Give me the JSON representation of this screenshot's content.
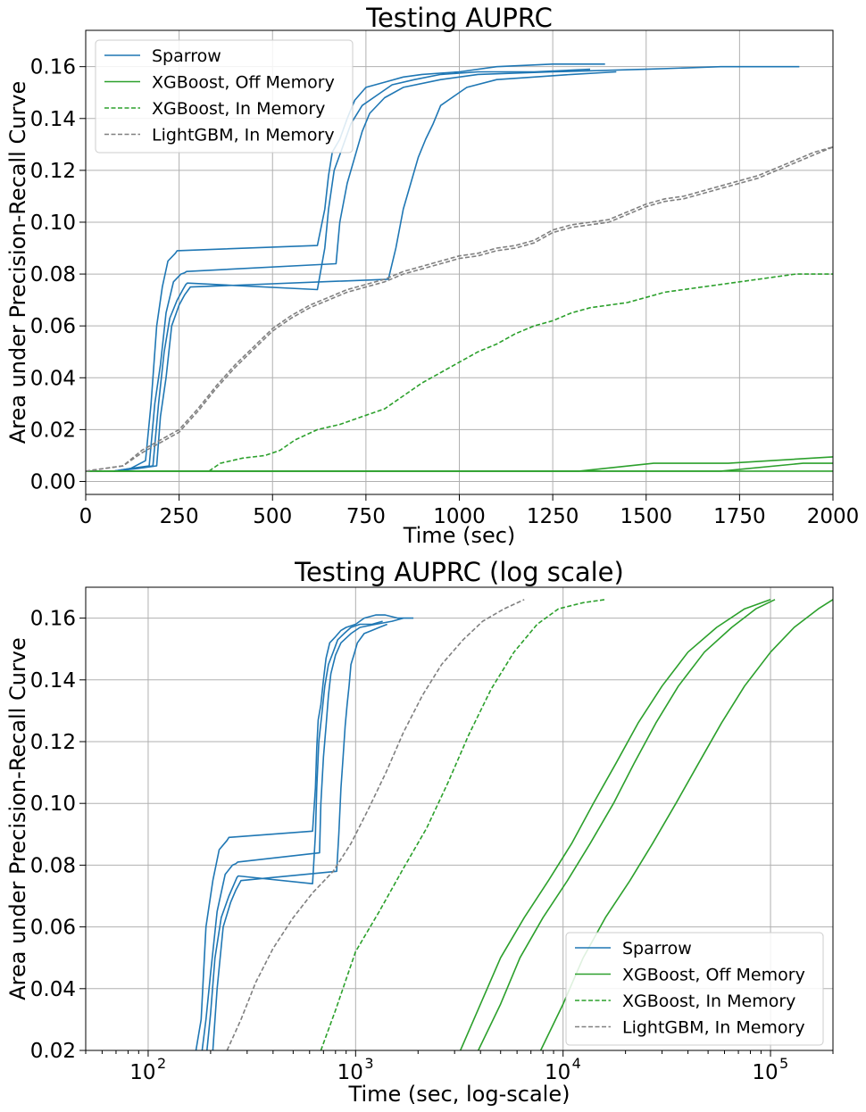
{
  "colors": {
    "sparrow": "#1f77b4",
    "xgboost": "#2ca02c",
    "lightgbm": "#808080"
  },
  "chart_data": [
    {
      "type": "line",
      "title": "Testing AUPRC",
      "xlabel": "Time (sec)",
      "ylabel": "Area under Precision-Recall Curve",
      "xscale": "linear",
      "xlim": [
        0,
        2000
      ],
      "ylim": [
        -0.005,
        0.174
      ],
      "xticks": [
        0,
        250,
        500,
        750,
        1000,
        1250,
        1500,
        1750,
        2000
      ],
      "xtick_labels": [
        "0",
        "250",
        "500",
        "750",
        "1000",
        "1250",
        "1500",
        "1750",
        "2000"
      ],
      "yticks": [
        0,
        0.02,
        0.04,
        0.06,
        0.08,
        0.1,
        0.12,
        0.14,
        0.16
      ],
      "ytick_labels": [
        "0.00",
        "0.02",
        "0.04",
        "0.06",
        "0.08",
        "0.10",
        "0.12",
        "0.14",
        "0.16"
      ],
      "grid": true,
      "legend_position": "upper-left",
      "series": [
        {
          "name": "Sparrow",
          "color": "sparrow",
          "dash": "solid",
          "legend": true,
          "x": [
            75,
            120,
            160,
            175,
            190,
            205,
            220,
            240,
            245,
            620,
            640,
            650,
            660,
            680,
            700,
            720,
            750,
            800,
            850,
            900,
            1000,
            1100,
            1250,
            1390
          ],
          "y": [
            0.004,
            0.005,
            0.008,
            0.03,
            0.06,
            0.075,
            0.085,
            0.088,
            0.089,
            0.091,
            0.105,
            0.118,
            0.127,
            0.132,
            0.14,
            0.147,
            0.152,
            0.154,
            0.156,
            0.157,
            0.158,
            0.16,
            0.161,
            0.161
          ]
        },
        {
          "name": "",
          "color": "sparrow",
          "dash": "solid",
          "legend": false,
          "x": [
            75,
            120,
            170,
            185,
            200,
            215,
            235,
            255,
            265,
            270,
            670,
            680,
            700,
            720,
            740,
            760,
            800,
            850,
            950,
            1050,
            1250,
            1500,
            1700,
            1910
          ],
          "y": [
            0.004,
            0.005,
            0.006,
            0.03,
            0.045,
            0.065,
            0.077,
            0.08,
            0.0805,
            0.081,
            0.084,
            0.1,
            0.115,
            0.125,
            0.135,
            0.142,
            0.148,
            0.152,
            0.155,
            0.157,
            0.158,
            0.159,
            0.16,
            0.16
          ]
        },
        {
          "name": "",
          "color": "sparrow",
          "dash": "solid",
          "legend": false,
          "x": [
            75,
            130,
            180,
            195,
            210,
            225,
            245,
            260,
            268,
            272,
            620,
            640,
            650,
            665,
            690,
            710,
            740,
            780,
            820,
            880,
            950,
            1050,
            1200,
            1350
          ],
          "y": [
            0.004,
            0.005,
            0.006,
            0.03,
            0.05,
            0.063,
            0.07,
            0.074,
            0.076,
            0.0765,
            0.074,
            0.09,
            0.105,
            0.12,
            0.13,
            0.138,
            0.145,
            0.149,
            0.153,
            0.155,
            0.157,
            0.158,
            0.158,
            0.159
          ]
        },
        {
          "name": "",
          "color": "sparrow",
          "dash": "solid",
          "legend": false,
          "x": [
            75,
            140,
            190,
            200,
            215,
            230,
            250,
            265,
            275,
            280,
            810,
            830,
            850,
            870,
            890,
            910,
            930,
            950,
            980,
            1020,
            1100,
            1200,
            1300,
            1420
          ],
          "y": [
            0.004,
            0.005,
            0.006,
            0.025,
            0.04,
            0.06,
            0.068,
            0.072,
            0.074,
            0.075,
            0.078,
            0.09,
            0.105,
            0.115,
            0.125,
            0.132,
            0.138,
            0.145,
            0.148,
            0.152,
            0.155,
            0.156,
            0.157,
            0.158
          ]
        },
        {
          "name": "XGBoost, Off Memory",
          "color": "xgboost",
          "dash": "solid",
          "legend": true,
          "x": [
            0,
            1320,
            1520,
            1720,
            2000
          ],
          "y": [
            0.004,
            0.004,
            0.007,
            0.007,
            0.0095
          ]
        },
        {
          "name": "",
          "color": "xgboost",
          "dash": "solid",
          "legend": false,
          "x": [
            0,
            1700,
            1920,
            2000
          ],
          "y": [
            0.004,
            0.004,
            0.007,
            0.007
          ]
        },
        {
          "name": "",
          "color": "xgboost",
          "dash": "solid",
          "legend": false,
          "x": [
            0,
            2000
          ],
          "y": [
            0.004,
            0.004
          ]
        },
        {
          "name": "XGBoost, In Memory",
          "color": "xgboost",
          "dash": "dashed",
          "legend": true,
          "x": [
            330,
            360,
            420,
            480,
            520,
            560,
            620,
            680,
            740,
            800,
            850,
            900,
            950,
            1000,
            1050,
            1100,
            1150,
            1200,
            1250,
            1300,
            1350,
            1400,
            1450,
            1500,
            1550,
            1600,
            1650,
            1700,
            1750,
            1800,
            1850,
            1900,
            1950,
            2000
          ],
          "y": [
            0.004,
            0.007,
            0.009,
            0.01,
            0.012,
            0.016,
            0.02,
            0.022,
            0.025,
            0.028,
            0.033,
            0.038,
            0.042,
            0.046,
            0.05,
            0.053,
            0.057,
            0.06,
            0.062,
            0.065,
            0.067,
            0.068,
            0.069,
            0.071,
            0.073,
            0.074,
            0.075,
            0.076,
            0.077,
            0.078,
            0.079,
            0.08,
            0.08,
            0.08
          ]
        },
        {
          "name": "LightGBM, In Memory",
          "color": "lightgbm",
          "dash": "dashed",
          "legend": true,
          "x": [
            0,
            100,
            150,
            200,
            250,
            300,
            350,
            400,
            450,
            500,
            550,
            600,
            650,
            700,
            750,
            800,
            850,
            900,
            950,
            1000,
            1050,
            1100,
            1150,
            1200,
            1250,
            1300,
            1350,
            1400,
            1450,
            1500,
            1550,
            1600,
            1650,
            1700,
            1750,
            1800,
            1850,
            1900,
            1950,
            2000
          ],
          "y": [
            0.004,
            0.006,
            0.012,
            0.016,
            0.02,
            0.028,
            0.037,
            0.045,
            0.052,
            0.059,
            0.064,
            0.068,
            0.071,
            0.074,
            0.076,
            0.078,
            0.081,
            0.083,
            0.085,
            0.087,
            0.088,
            0.09,
            0.091,
            0.093,
            0.097,
            0.099,
            0.1,
            0.101,
            0.104,
            0.107,
            0.109,
            0.11,
            0.112,
            0.114,
            0.116,
            0.118,
            0.121,
            0.124,
            0.127,
            0.129
          ]
        },
        {
          "name": "",
          "color": "lightgbm",
          "dash": "dashed",
          "legend": false,
          "x": [
            0,
            100,
            150,
            200,
            250,
            300,
            350,
            400,
            450,
            500,
            550,
            600,
            650,
            700,
            750,
            800,
            850,
            900,
            950,
            1000,
            1050,
            1100,
            1150,
            1200,
            1250,
            1300,
            1350,
            1400,
            1450,
            1500,
            1550,
            1600,
            1650,
            1700,
            1750,
            1800,
            1850,
            1900,
            1950,
            2000
          ],
          "y": [
            0.004,
            0.006,
            0.011,
            0.015,
            0.019,
            0.027,
            0.036,
            0.044,
            0.051,
            0.058,
            0.063,
            0.067,
            0.07,
            0.073,
            0.075,
            0.077,
            0.08,
            0.082,
            0.084,
            0.086,
            0.087,
            0.089,
            0.09,
            0.092,
            0.096,
            0.098,
            0.099,
            0.1,
            0.103,
            0.106,
            0.108,
            0.109,
            0.111,
            0.113,
            0.115,
            0.117,
            0.12,
            0.123,
            0.126,
            0.129
          ]
        }
      ]
    },
    {
      "type": "line",
      "title": "Testing AUPRC (log scale)",
      "xlabel": "Time (sec, log-scale)",
      "ylabel": "Area under Precision-Recall Curve",
      "xscale": "log",
      "xlim": [
        50,
        200000
      ],
      "ylim": [
        0.02,
        0.17
      ],
      "xticks": [
        100,
        1000,
        10000,
        100000
      ],
      "xtick_labels": [
        "2",
        "3",
        "4",
        "5"
      ],
      "xtick_base": "10",
      "yticks": [
        0.02,
        0.04,
        0.06,
        0.08,
        0.1,
        0.12,
        0.14,
        0.16
      ],
      "ytick_labels": [
        "0.02",
        "0.04",
        "0.06",
        "0.08",
        "0.10",
        "0.12",
        "0.14",
        "0.16"
      ],
      "grid": true,
      "legend_position": "lower-right",
      "series": [
        {
          "name": "Sparrow",
          "color": "sparrow",
          "dash": "solid",
          "legend": true,
          "x": [
            170,
            180,
            190,
            205,
            220,
            240,
            245,
            620,
            640,
            650,
            660,
            680,
            700,
            720,
            750,
            800,
            850,
            900,
            1000,
            1100,
            1250,
            1390,
            1600,
            1900
          ],
          "y": [
            0.02,
            0.03,
            0.06,
            0.075,
            0.085,
            0.088,
            0.089,
            0.091,
            0.105,
            0.118,
            0.127,
            0.132,
            0.14,
            0.147,
            0.152,
            0.154,
            0.156,
            0.157,
            0.158,
            0.16,
            0.161,
            0.161,
            0.16,
            0.16
          ]
        },
        {
          "name": "",
          "color": "sparrow",
          "dash": "solid",
          "legend": false,
          "x": [
            182,
            190,
            200,
            215,
            235,
            255,
            265,
            270,
            670,
            680,
            700,
            720,
            740,
            760,
            800,
            850,
            950,
            1050,
            1250,
            1500,
            1700
          ],
          "y": [
            0.02,
            0.03,
            0.045,
            0.065,
            0.077,
            0.08,
            0.0805,
            0.081,
            0.084,
            0.1,
            0.115,
            0.125,
            0.135,
            0.142,
            0.148,
            0.152,
            0.155,
            0.157,
            0.158,
            0.159,
            0.16
          ]
        },
        {
          "name": "",
          "color": "sparrow",
          "dash": "solid",
          "legend": false,
          "x": [
            192,
            200,
            210,
            225,
            245,
            260,
            268,
            272,
            620,
            640,
            650,
            665,
            690,
            710,
            740,
            780,
            820,
            880,
            950,
            1050,
            1200,
            1350
          ],
          "y": [
            0.02,
            0.032,
            0.05,
            0.063,
            0.07,
            0.074,
            0.076,
            0.0765,
            0.074,
            0.09,
            0.105,
            0.12,
            0.13,
            0.138,
            0.145,
            0.149,
            0.153,
            0.155,
            0.157,
            0.158,
            0.158,
            0.159
          ]
        },
        {
          "name": "",
          "color": "sparrow",
          "dash": "solid",
          "legend": false,
          "x": [
            205,
            215,
            230,
            250,
            265,
            275,
            280,
            810,
            830,
            850,
            870,
            890,
            910,
            930,
            950,
            980,
            1020,
            1100,
            1200,
            1300,
            1420
          ],
          "y": [
            0.02,
            0.04,
            0.06,
            0.068,
            0.072,
            0.074,
            0.075,
            0.078,
            0.09,
            0.105,
            0.115,
            0.125,
            0.132,
            0.138,
            0.145,
            0.148,
            0.152,
            0.155,
            0.156,
            0.157,
            0.158
          ]
        },
        {
          "name": "XGBoost, Off Memory",
          "color": "xgboost",
          "dash": "solid",
          "legend": true,
          "x": [
            3200,
            4000,
            5000,
            6500,
            8500,
            11000,
            14000,
            18000,
            23000,
            30000,
            40000,
            55000,
            75000,
            100000
          ],
          "y": [
            0.02,
            0.035,
            0.05,
            0.063,
            0.075,
            0.087,
            0.1,
            0.113,
            0.126,
            0.138,
            0.149,
            0.157,
            0.163,
            0.166
          ]
        },
        {
          "name": "",
          "color": "xgboost",
          "dash": "solid",
          "legend": false,
          "x": [
            3900,
            5000,
            6200,
            8000,
            10500,
            13500,
            17500,
            22000,
            28000,
            36000,
            48000,
            65000,
            85000,
            105000
          ],
          "y": [
            0.02,
            0.035,
            0.05,
            0.063,
            0.075,
            0.087,
            0.1,
            0.113,
            0.126,
            0.138,
            0.149,
            0.157,
            0.163,
            0.166
          ]
        },
        {
          "name": "",
          "color": "xgboost",
          "dash": "solid",
          "legend": false,
          "x": [
            7800,
            10000,
            12500,
            16000,
            21000,
            27000,
            35000,
            45000,
            58000,
            75000,
            100000,
            130000,
            170000,
            200000
          ],
          "y": [
            0.02,
            0.035,
            0.05,
            0.063,
            0.075,
            0.087,
            0.1,
            0.113,
            0.126,
            0.138,
            0.149,
            0.157,
            0.163,
            0.166
          ]
        },
        {
          "name": "XGBoost, In Memory",
          "color": "xgboost",
          "dash": "dashed",
          "legend": true,
          "x": [
            680,
            800,
            1000,
            1300,
            1700,
            2200,
            2800,
            3500,
            4500,
            5800,
            7500,
            9500,
            12500,
            16000
          ],
          "y": [
            0.02,
            0.033,
            0.052,
            0.065,
            0.079,
            0.092,
            0.107,
            0.122,
            0.137,
            0.149,
            0.158,
            0.163,
            0.165,
            0.166
          ]
        },
        {
          "name": "LightGBM, In Memory",
          "color": "lightgbm",
          "dash": "dashed",
          "legend": true,
          "x": [
            240,
            280,
            330,
            400,
            500,
            620,
            780,
            950,
            1150,
            1400,
            1700,
            2100,
            2600,
            3300,
            4100,
            5200,
            6500
          ],
          "y": [
            0.02,
            0.03,
            0.042,
            0.053,
            0.063,
            0.071,
            0.078,
            0.087,
            0.098,
            0.11,
            0.123,
            0.135,
            0.145,
            0.153,
            0.159,
            0.163,
            0.166
          ]
        }
      ]
    }
  ]
}
